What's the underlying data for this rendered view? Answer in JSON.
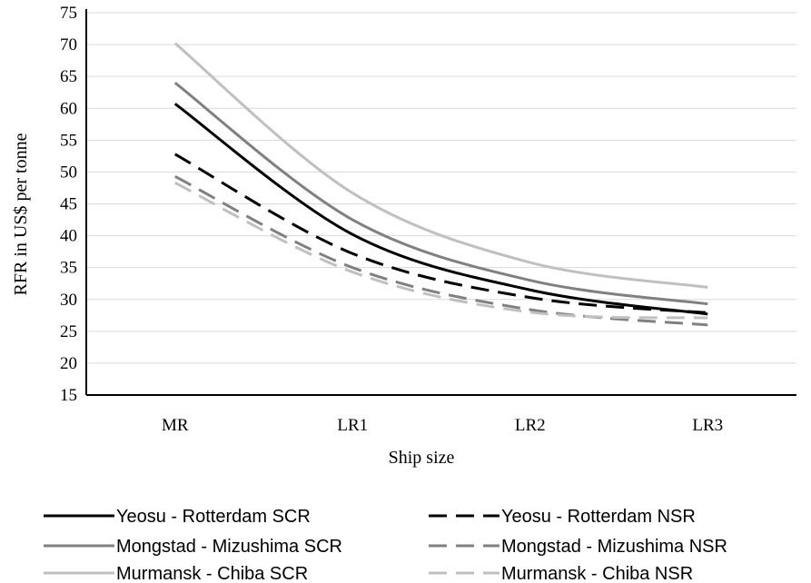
{
  "chart_data": {
    "type": "line",
    "xlabel": "Ship size",
    "ylabel": "RFR in US$ per tonne",
    "categories": [
      "MR",
      "LR1",
      "LR2",
      "LR3"
    ],
    "yticks": [
      "15",
      "20",
      "25",
      "30",
      "35",
      "40",
      "45",
      "50",
      "55",
      "60",
      "65",
      "70",
      "75"
    ],
    "ylim": [
      15,
      75
    ],
    "grid": true,
    "legend_position": "bottom",
    "series": [
      {
        "name": "Yeosu - Rotterdam SCR",
        "values": [
          60.7,
          40.2,
          31.5,
          27.7
        ],
        "color": "#000000",
        "dash": "solid"
      },
      {
        "name": "Yeosu - Rotterdam NSR",
        "values": [
          52.8,
          37.2,
          30.3,
          27.9
        ],
        "color": "#000000",
        "dash": "dashed"
      },
      {
        "name": "Mongstad - Mizushima SCR",
        "values": [
          64.0,
          42.5,
          33.0,
          29.3
        ],
        "color": "#808080",
        "dash": "solid"
      },
      {
        "name": "Mongstad - Mizushima NSR",
        "values": [
          49.3,
          35.0,
          28.4,
          26.0
        ],
        "color": "#808080",
        "dash": "dashed"
      },
      {
        "name": "Murmansk - Chiba SCR",
        "values": [
          70.2,
          46.7,
          35.8,
          31.9
        ],
        "color": "#c0c0c0",
        "dash": "solid"
      },
      {
        "name": "Murmansk - Chiba NSR",
        "values": [
          48.3,
          34.3,
          28.0,
          27.1
        ],
        "color": "#c0c0c0",
        "dash": "dashed"
      }
    ]
  }
}
